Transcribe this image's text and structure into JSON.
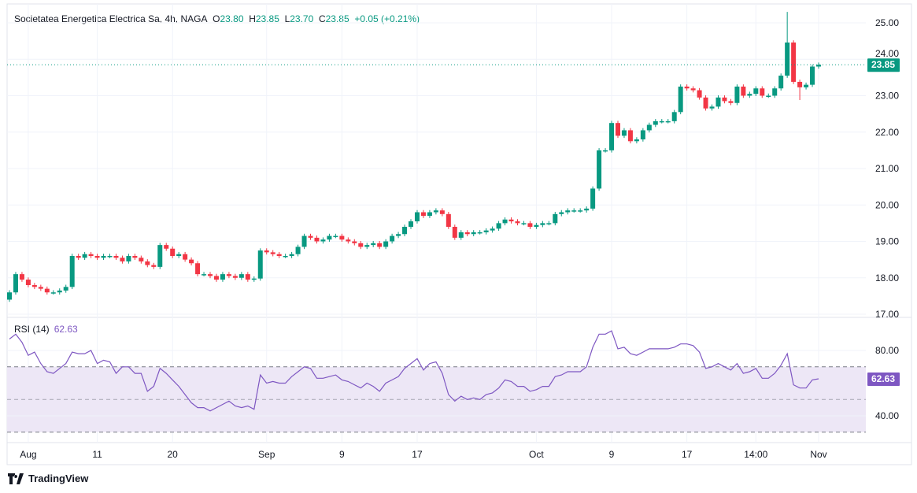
{
  "header": {
    "symbol": "Societatea Energetica Electrica Sa, 4h, NAGA",
    "o_label": "O",
    "o": "23.80",
    "h_label": "H",
    "h": "23.85",
    "l_label": "L",
    "l": "23.70",
    "c_label": "C",
    "c": "23.85",
    "change": "+0.05 (+0.21%)"
  },
  "rsi_legend": {
    "label": "RSI (14)",
    "value": "62.63"
  },
  "branding": {
    "name": "TradingView"
  },
  "colors": {
    "up": "#089981",
    "down": "#f23645",
    "rsi": "#7e57c2",
    "rsi_band": "#ede7f6"
  },
  "chart_data": [
    {
      "type": "candlestick",
      "title": "Societatea Energetica Electrica Sa, 4h, NAGA",
      "ylim": [
        17,
        25.3
      ],
      "yticks": [
        "25.00",
        "24.00",
        "23.00",
        "22.00",
        "21.00",
        "20.00",
        "19.00",
        "18.00",
        "17.00"
      ],
      "ytick_values": [
        25,
        24,
        23,
        22,
        21,
        20,
        19,
        18,
        17
      ],
      "last_price": 23.85,
      "last_price_label": "23.85",
      "first_open": 17.4,
      "extremes": [
        {
          "index": 124,
          "high": 25.3
        },
        {
          "index": 126,
          "low": 22.88
        }
      ],
      "closes": [
        17.6,
        18.1,
        17.95,
        17.8,
        17.75,
        17.7,
        17.6,
        17.6,
        17.65,
        17.75,
        18.6,
        18.55,
        18.65,
        18.6,
        18.55,
        18.6,
        18.6,
        18.55,
        18.45,
        18.6,
        18.55,
        18.45,
        18.35,
        18.3,
        18.9,
        18.8,
        18.6,
        18.65,
        18.5,
        18.4,
        18.1,
        18.1,
        18.05,
        17.95,
        18.1,
        18.05,
        18.0,
        18.1,
        17.95,
        17.98,
        18.75,
        18.7,
        18.65,
        18.6,
        18.6,
        18.65,
        18.85,
        19.15,
        19.1,
        19.0,
        19.05,
        19.15,
        19.15,
        19.05,
        19.0,
        18.95,
        18.85,
        18.9,
        18.95,
        18.85,
        19.0,
        19.15,
        19.2,
        19.4,
        19.55,
        19.8,
        19.7,
        19.8,
        19.85,
        19.75,
        19.4,
        19.1,
        19.25,
        19.2,
        19.25,
        19.25,
        19.3,
        19.35,
        19.5,
        19.6,
        19.55,
        19.5,
        19.5,
        19.4,
        19.45,
        19.5,
        19.5,
        19.75,
        19.8,
        19.85,
        19.85,
        19.85,
        19.9,
        20.45,
        21.5,
        21.5,
        22.25,
        21.9,
        22.05,
        21.75,
        21.8,
        22.05,
        22.2,
        22.3,
        22.3,
        22.3,
        22.55,
        23.25,
        23.2,
        23.15,
        22.95,
        22.65,
        22.7,
        22.95,
        22.85,
        22.8,
        23.25,
        23.0,
        23.05,
        23.2,
        23.0,
        23.0,
        23.2,
        23.55,
        24.46,
        23.38,
        23.23,
        23.3,
        23.8,
        23.85
      ]
    },
    {
      "type": "line",
      "title": "RSI (14)",
      "ylim": [
        30,
        93
      ],
      "yticks": [
        "80.00",
        "40.00"
      ],
      "ytick_values": [
        80,
        40
      ],
      "bands": [
        30,
        70
      ],
      "last_value_label": "62.63",
      "values": [
        87,
        90,
        85,
        77,
        79,
        72,
        67,
        66,
        69,
        72,
        79,
        78,
        78,
        80,
        72,
        74,
        73,
        66,
        70,
        70,
        66,
        66,
        55,
        58,
        69,
        66,
        62,
        58,
        53,
        48,
        45,
        45,
        43,
        45,
        47,
        49,
        46,
        45,
        46,
        44,
        65,
        60,
        61,
        60,
        60,
        64,
        67,
        70,
        69,
        63,
        63,
        64,
        65,
        62,
        61,
        59,
        57,
        60,
        58,
        55,
        60,
        62,
        64,
        69,
        72,
        75,
        68,
        72,
        73,
        66,
        53,
        49,
        52,
        50,
        51,
        50,
        53,
        54,
        57,
        62,
        61,
        58,
        58,
        55,
        56,
        58,
        58,
        64,
        65,
        67,
        67,
        67,
        70,
        82,
        90,
        90,
        92,
        81,
        82,
        78,
        77,
        79,
        81,
        81,
        81,
        81,
        82,
        84,
        84,
        83,
        79,
        69,
        70,
        72,
        70,
        68,
        72,
        66,
        67,
        69,
        63,
        63,
        66,
        71,
        78,
        59,
        57,
        57,
        62,
        62.63
      ]
    },
    {
      "type": "time_axis",
      "labels": [
        "Aug",
        "11",
        "20",
        "Sep",
        "9",
        "17",
        "Oct",
        "9",
        "17",
        "14:00",
        "Nov"
      ],
      "label_candle_index": [
        3,
        14,
        26,
        41,
        53,
        65,
        84,
        96,
        108,
        119,
        129
      ]
    }
  ]
}
